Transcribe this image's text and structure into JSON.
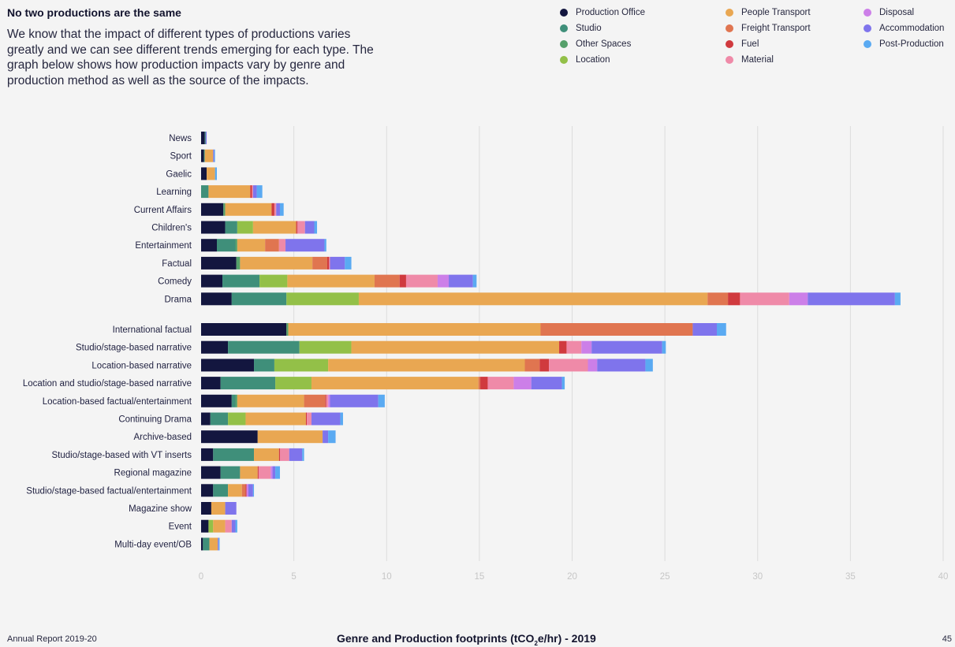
{
  "header": {
    "title": "No two productions are the same",
    "intro": "We know that the impact of different types of productions varies greatly and we can see different trends emerging for each type. The graph below shows how production impacts vary by genre and production method as well as the source of the impacts."
  },
  "footer": {
    "left": "Annual Report 2019-20",
    "title_pre": "Genre and Production footprints (tCO",
    "title_sub": "2",
    "title_post": "e/hr) - 2019",
    "page": "45"
  },
  "chart_data": {
    "type": "bar",
    "orientation": "horizontal",
    "stacked": true,
    "xlim": [
      0,
      40
    ],
    "xticks": [
      "0",
      "5",
      "10",
      "15",
      "20",
      "25",
      "30",
      "35",
      "40"
    ],
    "grid": true,
    "legend_position": "top-right",
    "series": [
      {
        "name": "Production Office",
        "color": "#13163f"
      },
      {
        "name": "Studio",
        "color": "#3f8f7a"
      },
      {
        "name": "Other Spaces",
        "color": "#55a06a"
      },
      {
        "name": "Location",
        "color": "#93c048"
      },
      {
        "name": "People Transport",
        "color": "#e9a752"
      },
      {
        "name": "Freight Transport",
        "color": "#e07550"
      },
      {
        "name": "Fuel",
        "color": "#d03a3e"
      },
      {
        "name": "Material",
        "color": "#ef8aa8"
      },
      {
        "name": "Disposal",
        "color": "#cc7fe8"
      },
      {
        "name": "Accommodation",
        "color": "#7f74ec"
      },
      {
        "name": "Post-Production",
        "color": "#5aaaf2"
      }
    ],
    "groups": [
      {
        "categories": [
          "News",
          "Sport",
          "Gaelic",
          "Learning",
          "Current Affairs",
          "Children's",
          "Entertainment",
          "Factual",
          "Comedy",
          "Drama"
        ],
        "values": [
          [
            0.2,
            0.05,
            0,
            0,
            0,
            0,
            0,
            0,
            0,
            0.05,
            0
          ],
          [
            0.15,
            0.05,
            0,
            0,
            0.45,
            0,
            0,
            0,
            0,
            0.05,
            0.05
          ],
          [
            0.3,
            0,
            0,
            0,
            0.45,
            0,
            0,
            0,
            0,
            0,
            0.1
          ],
          [
            0,
            0.4,
            0,
            0,
            2.25,
            0,
            0.1,
            0.05,
            0,
            0.2,
            0.3
          ],
          [
            1.2,
            0,
            0.1,
            0,
            2.5,
            0,
            0.15,
            0.1,
            0,
            0.2,
            0.2
          ],
          [
            1.3,
            0.65,
            0,
            0.85,
            2.3,
            0.05,
            0.05,
            0.4,
            0,
            0.5,
            0.15
          ],
          [
            0.85,
            1.0,
            0.1,
            0,
            1.5,
            0.75,
            0,
            0.35,
            0,
            2.1,
            0.1
          ],
          [
            1.9,
            0,
            0.2,
            0,
            3.9,
            0.8,
            0.1,
            0.05,
            0,
            0.8,
            0.35
          ],
          [
            1.15,
            2.0,
            0,
            1.5,
            4.7,
            1.35,
            0.35,
            1.7,
            0.6,
            1.3,
            0.2
          ],
          [
            1.65,
            2.95,
            0,
            3.9,
            18.8,
            1.1,
            0.65,
            2.65,
            1.0,
            4.7,
            0.3
          ]
        ]
      },
      {
        "categories": [
          "International factual",
          "Studio/stage-based narrative",
          "Location-based narrative",
          "Location and studio/stage-based narrative",
          "Location-based factual/entertainment",
          "Continuing Drama",
          "Archive-based",
          "Studio/stage-based with VT inserts",
          "Regional magazine",
          "Studio/stage-based factual/entertainment",
          "Magazine show",
          "Event",
          "Multi-day event/OB"
        ],
        "values": [
          [
            4.6,
            0,
            0.1,
            0,
            13.6,
            8.2,
            0,
            0,
            0,
            1.3,
            0.5
          ],
          [
            1.45,
            3.85,
            0,
            2.8,
            11.2,
            0,
            0.4,
            0.8,
            0.55,
            3.8,
            0.2
          ],
          [
            2.85,
            1.1,
            0,
            2.9,
            10.6,
            0.8,
            0.5,
            2.1,
            0.5,
            2.6,
            0.4
          ],
          [
            1.05,
            2.95,
            0,
            1.95,
            9.0,
            0.1,
            0.4,
            1.4,
            0.95,
            1.65,
            0.15
          ],
          [
            1.65,
            0.2,
            0.1,
            0,
            3.6,
            1.15,
            0.05,
            0.1,
            0.1,
            2.6,
            0.35
          ],
          [
            0.5,
            0.95,
            0,
            0.95,
            3.25,
            0,
            0.05,
            0.25,
            0,
            1.55,
            0.15
          ],
          [
            3.05,
            0,
            0,
            0,
            3.5,
            0,
            0,
            0,
            0,
            0.3,
            0.4
          ],
          [
            0.65,
            2.2,
            0,
            0,
            1.35,
            0,
            0.05,
            0.5,
            0,
            0.7,
            0.1
          ],
          [
            1.05,
            1.05,
            0,
            0,
            0.95,
            0,
            0.05,
            0.65,
            0.1,
            0.15,
            0.25
          ],
          [
            0.65,
            0.8,
            0,
            0,
            0.75,
            0.2,
            0.05,
            0,
            0.1,
            0.25,
            0.05
          ],
          [
            0.55,
            0,
            0,
            0,
            0.75,
            0,
            0,
            0,
            0,
            0.6,
            0
          ],
          [
            0.4,
            0,
            0,
            0.25,
            0.65,
            0,
            0,
            0.35,
            0,
            0.2,
            0.1
          ],
          [
            0.1,
            0.35,
            0,
            0,
            0.45,
            0,
            0,
            0,
            0,
            0.05,
            0.05
          ]
        ]
      }
    ]
  }
}
